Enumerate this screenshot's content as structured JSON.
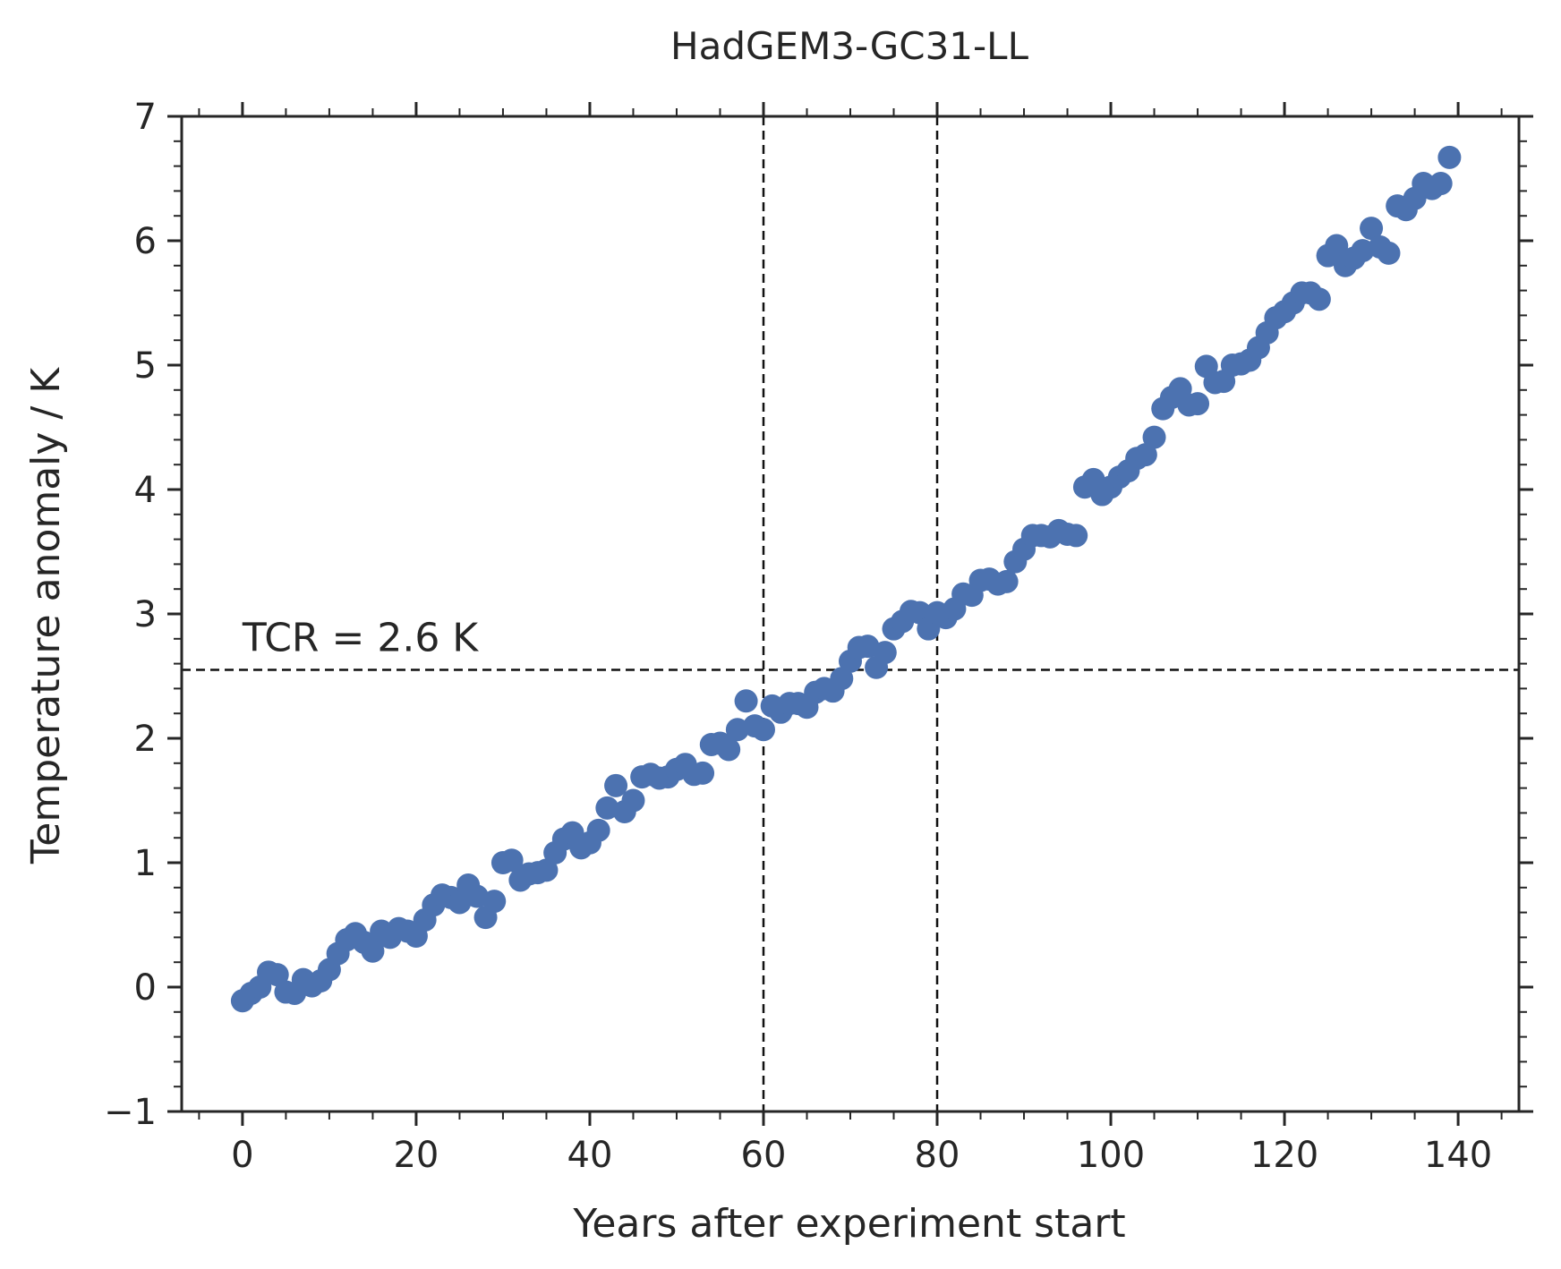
{
  "chart_data": {
    "type": "scatter",
    "title": "HadGEM3-GC31-LL",
    "xlabel": "Years after experiment start",
    "ylabel": "Temperature anomaly / K",
    "xlim": [
      -7,
      147
    ],
    "ylim": [
      -1,
      7
    ],
    "x_ticks": [
      0,
      20,
      40,
      60,
      80,
      100,
      120,
      140
    ],
    "x_tick_labels": [
      "0",
      "20",
      "40",
      "60",
      "80",
      "100",
      "120",
      "140"
    ],
    "y_ticks": [
      -1,
      0,
      1,
      2,
      3,
      4,
      5,
      6,
      7
    ],
    "y_tick_labels": [
      "−1",
      "0",
      "1",
      "2",
      "3",
      "4",
      "5",
      "6",
      "7"
    ],
    "x_minor_step": 5,
    "y_minor_step": 0.2,
    "grid": false,
    "colors": {
      "points": "#4c72b0",
      "lines": "#111111",
      "axes": "#262626"
    },
    "reference_lines": {
      "vertical": [
        60,
        80
      ],
      "horizontal": 2.55,
      "style": "dashed"
    },
    "annotation": {
      "text": "TCR = 2.6 K",
      "x": 0,
      "y": 2.7
    },
    "series": [
      {
        "x": [
          0,
          1,
          2,
          3,
          4,
          5,
          6,
          7,
          8,
          9,
          10,
          11,
          12,
          13,
          14,
          15,
          16,
          17,
          18,
          19,
          20,
          21,
          22,
          23,
          24,
          25,
          26,
          27,
          28,
          29,
          30,
          31,
          32,
          33,
          34,
          35,
          36,
          37,
          38,
          39,
          40,
          41,
          42,
          43,
          44,
          45,
          46,
          47,
          48,
          49,
          50,
          51,
          52,
          53,
          54,
          55,
          56,
          57,
          58,
          59,
          60,
          61,
          62,
          63,
          64,
          65,
          66,
          67,
          68,
          69,
          70,
          71,
          72,
          73,
          74,
          75,
          76,
          77,
          78,
          79,
          80,
          81,
          82,
          83,
          84,
          85,
          86,
          87,
          88,
          89,
          90,
          91,
          92,
          93,
          94,
          95,
          96,
          97,
          98,
          99,
          100,
          101,
          102,
          103,
          104,
          105,
          106,
          107,
          108,
          109,
          110,
          111,
          112,
          113,
          114,
          115,
          116,
          117,
          118,
          119,
          120,
          121,
          122,
          123,
          124,
          125,
          126,
          127,
          128,
          129,
          130,
          131,
          132,
          133,
          134,
          135,
          136,
          137,
          138,
          139
        ],
        "y": [
          -0.11,
          -0.05,
          0.0,
          0.12,
          0.1,
          -0.04,
          -0.05,
          0.06,
          0.01,
          0.05,
          0.14,
          0.27,
          0.38,
          0.43,
          0.36,
          0.29,
          0.45,
          0.4,
          0.47,
          0.45,
          0.41,
          0.54,
          0.66,
          0.74,
          0.72,
          0.68,
          0.82,
          0.73,
          0.56,
          0.69,
          1.0,
          1.02,
          0.86,
          0.91,
          0.92,
          0.94,
          1.08,
          1.19,
          1.24,
          1.12,
          1.16,
          1.26,
          1.44,
          1.62,
          1.41,
          1.5,
          1.69,
          1.71,
          1.68,
          1.69,
          1.75,
          1.79,
          1.71,
          1.72,
          1.95,
          1.96,
          1.91,
          2.07,
          2.3,
          2.1,
          2.07,
          2.26,
          2.21,
          2.28,
          2.28,
          2.25,
          2.37,
          2.4,
          2.38,
          2.48,
          2.62,
          2.73,
          2.74,
          2.57,
          2.69,
          2.88,
          2.94,
          3.02,
          3.01,
          2.88,
          3.01,
          2.97,
          3.04,
          3.16,
          3.15,
          3.27,
          3.28,
          3.24,
          3.26,
          3.42,
          3.52,
          3.63,
          3.63,
          3.62,
          3.67,
          3.64,
          3.63,
          4.02,
          4.08,
          3.96,
          4.02,
          4.1,
          4.15,
          4.25,
          4.28,
          4.42,
          4.65,
          4.74,
          4.81,
          4.68,
          4.69,
          4.99,
          4.86,
          4.87,
          5.0,
          5.01,
          5.04,
          5.14,
          5.26,
          5.38,
          5.43,
          5.5,
          5.58,
          5.58,
          5.53,
          5.88,
          5.96,
          5.8,
          5.86,
          5.92,
          6.1,
          5.95,
          5.9,
          6.28,
          6.25,
          6.34,
          6.46,
          6.42,
          6.46,
          6.67
        ]
      }
    ]
  }
}
